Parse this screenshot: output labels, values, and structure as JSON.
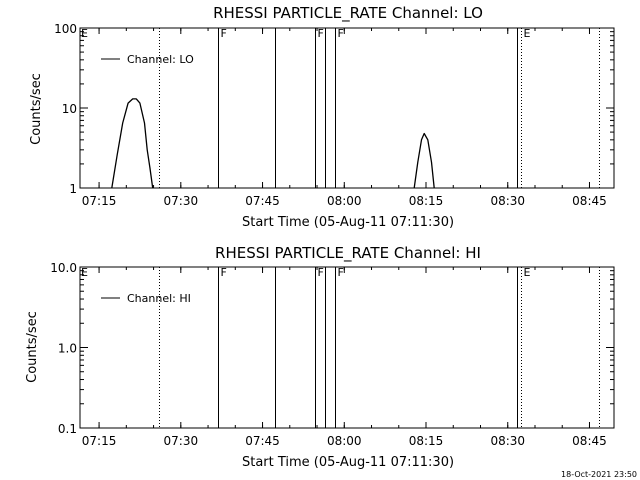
{
  "chart_data": [
    {
      "type": "line",
      "title": "RHESSI PARTICLE_RATE Channel: LO",
      "xlabel": "Start Time (05-Aug-11 07:11:30)",
      "ylabel": "Counts/sec",
      "yscale": "log",
      "ylim": [
        1,
        100
      ],
      "xlim_minutes": [
        0,
        98
      ],
      "x_tick_labels": [
        "07:15",
        "07:30",
        "07:45",
        "08:00",
        "08:15",
        "08:30",
        "08:45"
      ],
      "y_tick_labels": [
        "1",
        "10",
        "100"
      ],
      "y_tick_values": [
        1,
        10,
        100
      ],
      "legend": {
        "label": "Channel: LO",
        "position": "top-left"
      },
      "series": [
        {
          "name": "Channel: LO",
          "x": [
            "07:17:20",
            "07:18:20",
            "07:19:20",
            "07:20:20",
            "07:21:10",
            "07:21:50",
            "07:22:30",
            "07:23:20",
            "07:23:50",
            "07:24:20",
            "07:24:50"
          ],
          "y": [
            1,
            2.6,
            6.5,
            11.5,
            13,
            13,
            11.5,
            6.5,
            3.0,
            1.8,
            1
          ],
          "segment": 1
        },
        {
          "name": "Channel: LO",
          "x": [
            "08:12:50",
            "08:13:30",
            "08:14:10",
            "08:14:40",
            "08:15:20",
            "08:16:00",
            "08:16:30"
          ],
          "y": [
            1,
            2.1,
            4.0,
            4.8,
            4.0,
            2.1,
            1
          ],
          "segment": 2
        }
      ],
      "vertical_markers": [
        {
          "time": "07:26:00",
          "style": "dotted",
          "flag": ""
        },
        {
          "time": "07:36:50",
          "style": "solid",
          "flag": "F"
        },
        {
          "time": "07:47:20",
          "style": "solid",
          "flag": ""
        },
        {
          "time": "07:54:40",
          "style": "solid",
          "flag": "F"
        },
        {
          "time": "07:56:30",
          "style": "solid",
          "flag": ""
        },
        {
          "time": "07:58:20",
          "style": "solid",
          "flag": "F"
        },
        {
          "time": "08:31:40",
          "style": "solid",
          "flag": ""
        },
        {
          "time": "08:32:30",
          "style": "dotted",
          "flag": "E"
        },
        {
          "time": "08:46:50",
          "style": "dotted",
          "flag": ""
        }
      ],
      "edge_flag_left": "E"
    },
    {
      "type": "line",
      "title": "RHESSI PARTICLE_RATE Channel: HI",
      "xlabel": "Start Time (05-Aug-11 07:11:30)",
      "ylabel": "Counts/sec",
      "yscale": "log",
      "ylim": [
        0.1,
        10
      ],
      "xlim_minutes": [
        0,
        98
      ],
      "x_tick_labels": [
        "07:15",
        "07:30",
        "07:45",
        "08:00",
        "08:15",
        "08:30",
        "08:45"
      ],
      "y_tick_labels": [
        "0.1",
        "1.0",
        "10.0"
      ],
      "y_tick_values": [
        0.1,
        1,
        10
      ],
      "legend": {
        "label": "Channel: HI",
        "position": "top-left"
      },
      "series": [
        {
          "name": "Channel: HI",
          "x": [],
          "y": []
        }
      ],
      "vertical_markers": [
        {
          "time": "07:26:00",
          "style": "dotted",
          "flag": ""
        },
        {
          "time": "07:36:50",
          "style": "solid",
          "flag": "F"
        },
        {
          "time": "07:47:20",
          "style": "solid",
          "flag": ""
        },
        {
          "time": "07:54:40",
          "style": "solid",
          "flag": "F"
        },
        {
          "time": "07:56:30",
          "style": "solid",
          "flag": ""
        },
        {
          "time": "07:58:20",
          "style": "solid",
          "flag": "F"
        },
        {
          "time": "08:31:40",
          "style": "solid",
          "flag": ""
        },
        {
          "time": "08:32:30",
          "style": "dotted",
          "flag": "E"
        },
        {
          "time": "08:46:50",
          "style": "dotted",
          "flag": ""
        }
      ],
      "edge_flag_left": "E"
    }
  ],
  "footer": {
    "timestamp": "18-Oct-2021 23:50"
  }
}
